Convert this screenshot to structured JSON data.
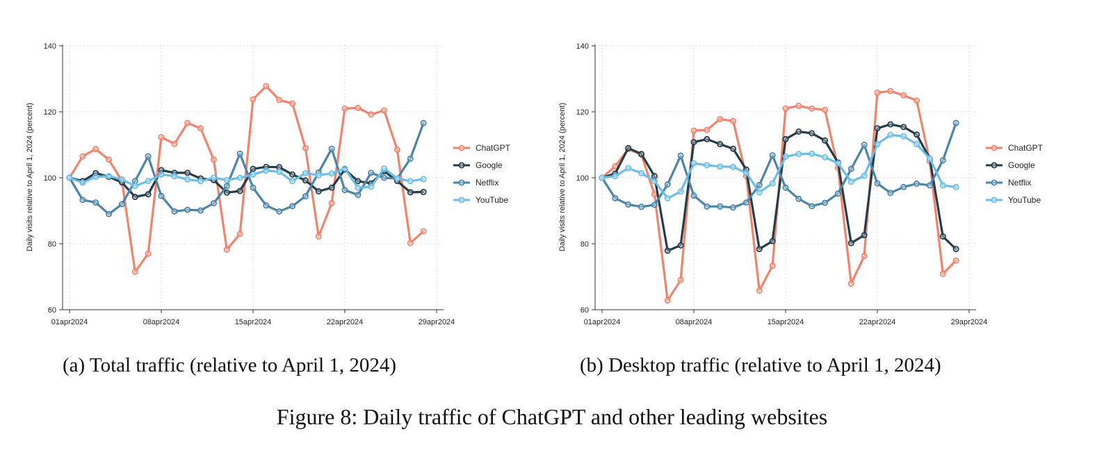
{
  "figure_caption": "Figure 8: Daily traffic of ChatGPT and other leading websites",
  "chart_data": [
    {
      "type": "line",
      "caption": "(a) Total traffic (relative to April 1, 2024)",
      "ylabel": "Daily visits relative to April 1, 2024 (percent)",
      "xlabel": "",
      "ylim": [
        60,
        140
      ],
      "yticks": [
        60,
        80,
        100,
        120,
        140
      ],
      "xlim": [
        "2024-04-01",
        "2024-04-29"
      ],
      "xticks": [
        "01apr2024",
        "08apr2024",
        "15apr2024",
        "22apr2024",
        "29apr2024"
      ],
      "grid": true,
      "legend_position": "right",
      "x": [
        "2024-04-01",
        "2024-04-02",
        "2024-04-03",
        "2024-04-04",
        "2024-04-05",
        "2024-04-06",
        "2024-04-07",
        "2024-04-08",
        "2024-04-09",
        "2024-04-10",
        "2024-04-11",
        "2024-04-12",
        "2024-04-13",
        "2024-04-14",
        "2024-04-15",
        "2024-04-16",
        "2024-04-17",
        "2024-04-18",
        "2024-04-19",
        "2024-04-20",
        "2024-04-21",
        "2024-04-22",
        "2024-04-23",
        "2024-04-24",
        "2024-04-25",
        "2024-04-26",
        "2024-04-27",
        "2024-04-28"
      ],
      "series": [
        {
          "name": "ChatGPT",
          "color": "#f0836b",
          "values": [
            100,
            106.5,
            108.7,
            105.5,
            99,
            71.5,
            77,
            112.3,
            110.3,
            116.6,
            115,
            105.5,
            78.2,
            83,
            123.8,
            127.8,
            123.6,
            122.5,
            109,
            82.2,
            92.3,
            121,
            121.2,
            119.2,
            120.4,
            108.5,
            80.2,
            83.8
          ]
        },
        {
          "name": "Google",
          "color": "#243b4a",
          "values": [
            100,
            99,
            101.4,
            100.3,
            98.6,
            94.2,
            95,
            102.3,
            101.5,
            101.5,
            99.8,
            99.3,
            95.5,
            96,
            102.7,
            103.3,
            103.2,
            101,
            99.2,
            95.9,
            97,
            102.5,
            99,
            98.3,
            102,
            99,
            95.6,
            95.7
          ]
        },
        {
          "name": "Netflix",
          "color": "#4a84a8",
          "values": [
            100,
            93.3,
            92.5,
            89,
            92,
            99,
            106.5,
            94.5,
            89.8,
            90.3,
            90.1,
            92.3,
            97.5,
            107.3,
            97,
            91.6,
            89.8,
            91.4,
            94.4,
            101.6,
            108.8,
            96.3,
            94.8,
            101.5,
            100,
            99.8,
            105.8,
            116.6
          ]
        },
        {
          "name": "YouTube",
          "color": "#6bbde8",
          "values": [
            100,
            98.5,
            100.3,
            100.5,
            99.5,
            97.5,
            99,
            101,
            100.5,
            99.5,
            99,
            100,
            99.3,
            100,
            101,
            102.2,
            101.8,
            99,
            101.4,
            100.8,
            101.3,
            102.8,
            97,
            97.3,
            102.8,
            99.8,
            99,
            99.6
          ]
        }
      ]
    },
    {
      "type": "line",
      "caption": "(b) Desktop traffic (relative to April 1, 2024)",
      "ylabel": "Daily visits relative to April 1, 2024 (percent)",
      "xlabel": "",
      "ylim": [
        60,
        140
      ],
      "yticks": [
        60,
        80,
        100,
        120,
        140
      ],
      "xlim": [
        "2024-04-01",
        "2024-04-29"
      ],
      "xticks": [
        "01apr2024",
        "08apr2024",
        "15apr2024",
        "22apr2024",
        "29apr2024"
      ],
      "grid": true,
      "legend_position": "right",
      "x": [
        "2024-04-01",
        "2024-04-02",
        "2024-04-03",
        "2024-04-04",
        "2024-04-05",
        "2024-04-06",
        "2024-04-07",
        "2024-04-08",
        "2024-04-09",
        "2024-04-10",
        "2024-04-11",
        "2024-04-12",
        "2024-04-13",
        "2024-04-14",
        "2024-04-15",
        "2024-04-16",
        "2024-04-17",
        "2024-04-18",
        "2024-04-19",
        "2024-04-20",
        "2024-04-21",
        "2024-04-22",
        "2024-04-23",
        "2024-04-24",
        "2024-04-25",
        "2024-04-26",
        "2024-04-27",
        "2024-04-28"
      ],
      "series": [
        {
          "name": "ChatGPT",
          "color": "#f0836b",
          "values": [
            100,
            103.5,
            108.7,
            107,
            95,
            62.8,
            69,
            114.3,
            114.5,
            117.8,
            117.2,
            100.5,
            65.8,
            73.3,
            121,
            121.8,
            121,
            120.6,
            103,
            67.9,
            76.3,
            125.8,
            126.3,
            125,
            123.4,
            105,
            70.9,
            74.9
          ]
        },
        {
          "name": "Google",
          "color": "#243b4a",
          "values": [
            100,
            101.3,
            109,
            107.2,
            100.5,
            77.9,
            79.5,
            110.8,
            111.7,
            110.2,
            108.8,
            102.5,
            78.4,
            80.8,
            111.7,
            114,
            113.5,
            111.3,
            104.6,
            80.2,
            82.6,
            115,
            116.2,
            115.4,
            113.1,
            105.8,
            82.2,
            78.4
          ]
        },
        {
          "name": "Netflix",
          "color": "#4a84a8",
          "values": [
            100,
            93.8,
            91.9,
            91.2,
            91.8,
            98,
            106.7,
            94.6,
            91.3,
            91.3,
            91,
            92.5,
            97.8,
            106.8,
            97,
            93.6,
            91.4,
            92.4,
            95.2,
            102.7,
            110,
            98.3,
            95.4,
            97.2,
            98.2,
            97.7,
            105.3,
            116.6
          ]
        },
        {
          "name": "YouTube",
          "color": "#6bbde8",
          "values": [
            100,
            100.5,
            102.9,
            101.4,
            99,
            93.8,
            95.8,
            104.4,
            103.8,
            103.4,
            103.3,
            101.5,
            95.6,
            98.3,
            106.4,
            107.2,
            107.3,
            106.2,
            104.4,
            98.8,
            100.6,
            110.2,
            113,
            112.6,
            110.2,
            105.8,
            97.7,
            97.2
          ]
        }
      ]
    }
  ]
}
